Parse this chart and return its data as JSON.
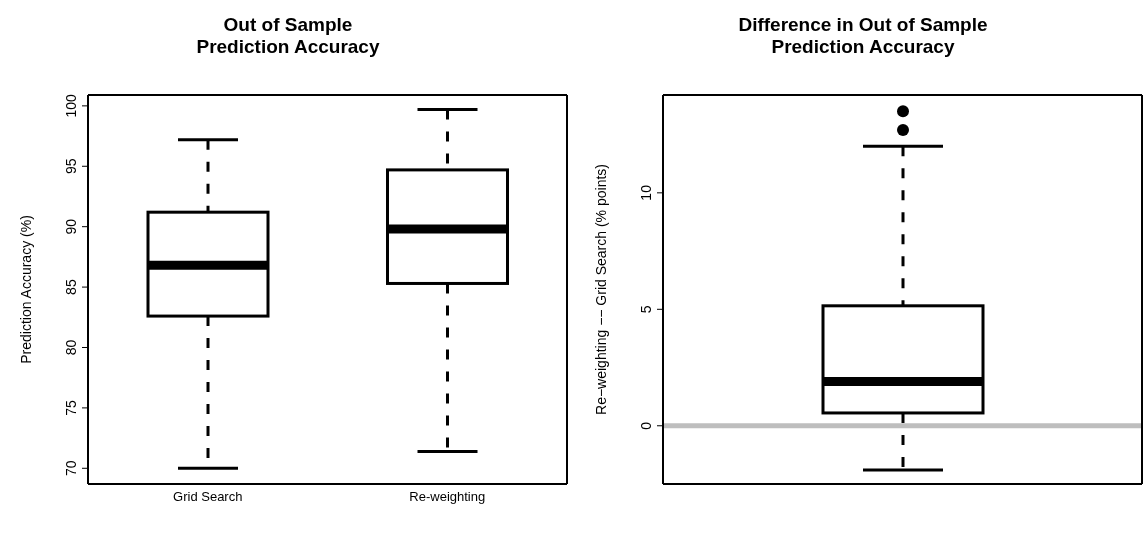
{
  "chart_data": [
    {
      "type": "box",
      "title": "Out of Sample\nPrediction Accuracy",
      "ylabel": "Prediction Accuracy (%)",
      "categories": [
        "Grid Search",
        "Re-weighting"
      ],
      "boxes": [
        {
          "low": 70.0,
          "q1": 82.6,
          "median": 86.8,
          "q3": 91.2,
          "high": 97.2
        },
        {
          "low": 71.4,
          "q1": 85.3,
          "median": 89.8,
          "q3": 94.7,
          "high": 99.7
        }
      ],
      "ylim": [
        68.7,
        100.9
      ],
      "yticks": [
        70,
        75,
        80,
        85,
        90,
        95,
        100
      ],
      "grid": false,
      "legend": false
    },
    {
      "type": "box",
      "title": "Difference in Out of Sample\nPrediction Accuracy",
      "ylabel": "Re−weighting −− Grid Search   (% points)",
      "categories": [
        null
      ],
      "boxes": [
        {
          "low": -1.9,
          "q1": 0.55,
          "median": 1.9,
          "q3": 5.15,
          "high": 12.0,
          "outliers": [
            12.7,
            13.5
          ]
        }
      ],
      "ylim": [
        -2.5,
        14.2
      ],
      "yticks": [
        0,
        5,
        10
      ],
      "grid": false,
      "legend": false,
      "ref_lines": [
        {
          "axis": "y",
          "value": 0,
          "color": "#bebebe"
        }
      ]
    }
  ]
}
